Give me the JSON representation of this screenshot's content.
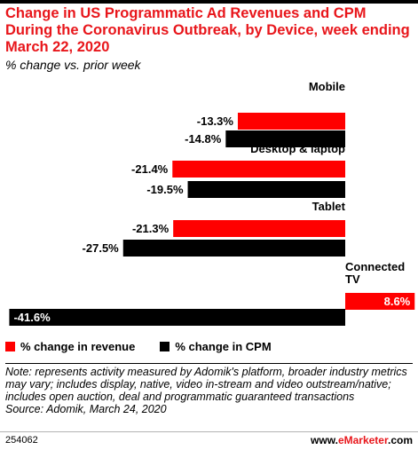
{
  "title": "Change in US Programmatic Ad Revenues and CPM During the Coronavirus Outbreak, by Device, week ending March 22, 2020",
  "subtitle": "% change vs. prior week",
  "colors": {
    "revenue": "#ff0000",
    "cpm": "#000000",
    "title": "#e8161b"
  },
  "chart_data": {
    "type": "bar",
    "orientation": "horizontal",
    "categories": [
      "Mobile",
      "Desktop & laptop",
      "Tablet",
      "Connected TV"
    ],
    "series": [
      {
        "name": "% change in revenue",
        "values": [
          -13.3,
          -21.4,
          -21.3,
          8.6
        ]
      },
      {
        "name": "% change in CPM",
        "values": [
          -14.8,
          -19.5,
          -27.5,
          -41.6
        ]
      }
    ],
    "value_labels": [
      [
        "-13.3%",
        "-21.4%",
        "-21.3%",
        "8.6%"
      ],
      [
        "-14.8%",
        "-19.5%",
        "-27.5%",
        "-41.6%"
      ]
    ],
    "unit": "%",
    "grid": false,
    "legend_position": "bottom-left"
  },
  "legend": [
    {
      "label": "% change in revenue",
      "color": "#ff0000"
    },
    {
      "label": "% change in CPM",
      "color": "#000000"
    }
  ],
  "note": "Note: represents activity measured by Adomik's platform, broader industry metrics may vary; includes display, native, video in-stream and video outstream/native; includes open auction, deal and programmatic guaranteed transactions",
  "source": "Source: Adomik, March 24, 2020",
  "chart_id": "254062",
  "brand": {
    "prefix": "www.",
    "accent": "eMarketer",
    "suffix": ".com"
  }
}
